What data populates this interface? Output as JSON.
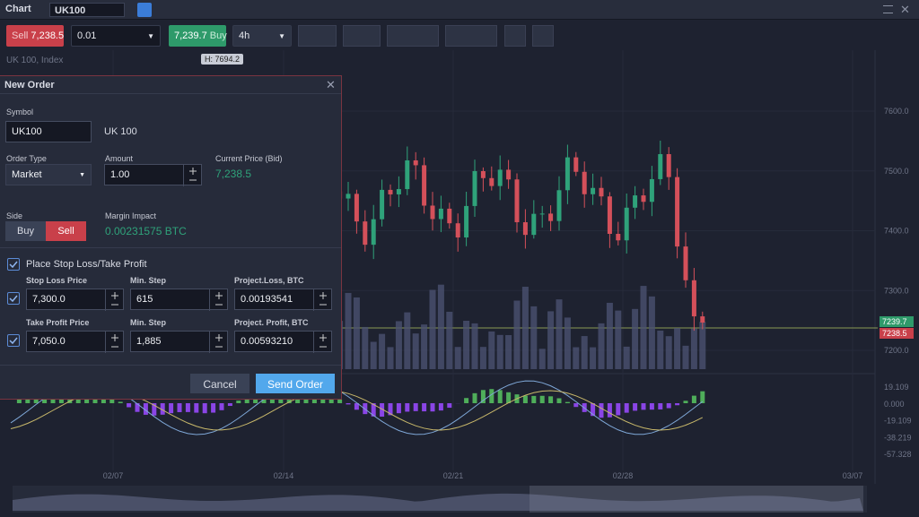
{
  "header": {
    "title": "Chart",
    "symbol": "UK100"
  },
  "toolbar": {
    "sell_label": "Sell",
    "sell_price": "7,238.5",
    "quantity": "0.01",
    "buy_price": "7,239.7",
    "buy_label": "Buy",
    "interval": "4h"
  },
  "chart": {
    "instrument": "UK 100, Index",
    "high_label": "H: 7694.2",
    "price_axis": [
      "7600.0",
      "7500.0",
      "7400.0",
      "7300.0",
      "7200.0"
    ],
    "ask_tag": "7239.7",
    "bid_tag": "7238.5",
    "indicator_axis": [
      "19.109",
      "0.000",
      "-19.109",
      "-38.219",
      "-57.328"
    ],
    "dates": [
      "02/07",
      "02/14",
      "02/21",
      "02/28",
      "03/07"
    ]
  },
  "order": {
    "title": "New Order",
    "symbol_label": "Symbol",
    "symbol_value": "UK100",
    "symbol_name": "UK 100",
    "order_type_label": "Order Type",
    "order_type": "Market",
    "amount_label": "Amount",
    "amount": "1.00",
    "current_price_label": "Current Price (Bid)",
    "current_price": "7,238.5",
    "side_label": "Side",
    "buy": "Buy",
    "sell": "Sell",
    "margin_label": "Margin Impact",
    "margin": "0.00231575 BTC",
    "stop_take_label": "Place Stop Loss/Take Profit",
    "stop_loss": {
      "price_label": "Stop Loss Price",
      "price": "7,300.0",
      "step_label": "Min. Step",
      "step": "615",
      "project_label": "Project.Loss, BTC",
      "project": "0.00193541"
    },
    "take_profit": {
      "price_label": "Take Profit Price",
      "price": "7,050.0",
      "step_label": "Min. Step",
      "step": "1,885",
      "project_label": "Project. Profit, BTC",
      "project": "0.00593210"
    },
    "cancel": "Cancel",
    "submit": "Send Order"
  }
}
